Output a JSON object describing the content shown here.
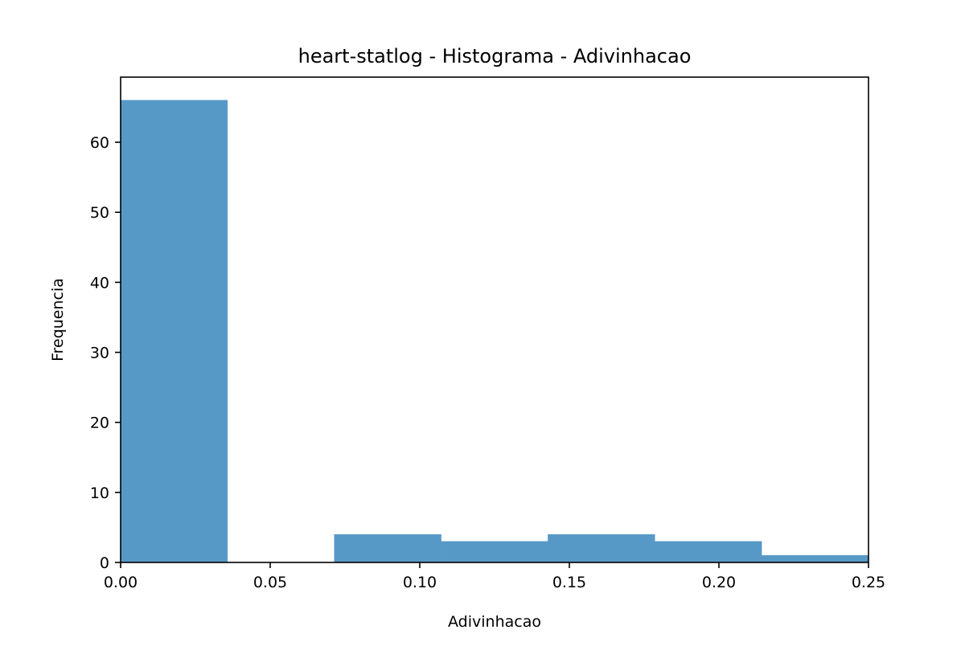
{
  "chart_data": {
    "type": "bar",
    "title": "heart-statlog - Histograma - Adivinhacao",
    "xlabel": "Adivinhacao",
    "ylabel": "Frequencia",
    "xlim": [
      0.0,
      0.25
    ],
    "ylim": [
      0,
      69.3
    ],
    "grid": false,
    "bins": [
      {
        "start": 0.0,
        "end": 0.035714,
        "count": 66
      },
      {
        "start": 0.035714,
        "end": 0.071429,
        "count": 0
      },
      {
        "start": 0.071429,
        "end": 0.107143,
        "count": 4
      },
      {
        "start": 0.107143,
        "end": 0.142857,
        "count": 3
      },
      {
        "start": 0.142857,
        "end": 0.178571,
        "count": 4
      },
      {
        "start": 0.178571,
        "end": 0.214286,
        "count": 3
      },
      {
        "start": 0.214286,
        "end": 0.25,
        "count": 1
      }
    ],
    "x_ticks": [
      {
        "value": 0.0,
        "label": "0.00"
      },
      {
        "value": 0.05,
        "label": "0.05"
      },
      {
        "value": 0.1,
        "label": "0.10"
      },
      {
        "value": 0.15,
        "label": "0.15"
      },
      {
        "value": 0.2,
        "label": "0.20"
      },
      {
        "value": 0.25,
        "label": "0.25"
      }
    ],
    "y_ticks": [
      {
        "value": 0,
        "label": "0"
      },
      {
        "value": 10,
        "label": "10"
      },
      {
        "value": 20,
        "label": "20"
      },
      {
        "value": 30,
        "label": "30"
      },
      {
        "value": 40,
        "label": "40"
      },
      {
        "value": 50,
        "label": "50"
      },
      {
        "value": 60,
        "label": "60"
      }
    ],
    "bar_color": "#5799c6",
    "bar_edge_color": "#5799c6"
  }
}
